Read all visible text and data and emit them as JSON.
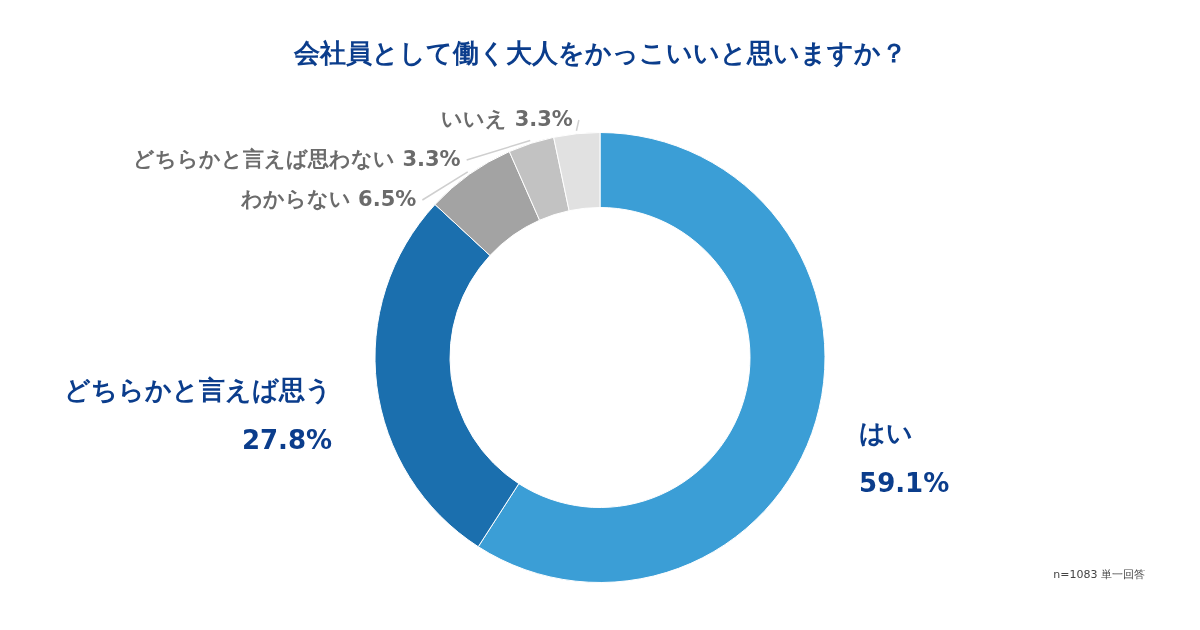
{
  "chart_data": {
    "type": "donut",
    "title": "会社員として働く大人をかっこいいと思いますか？",
    "categories": [
      "はい",
      "どちらかと言えば思う",
      "わからない",
      "どちらかと言えば思わない",
      "いいえ"
    ],
    "values": [
      59.1,
      27.8,
      6.5,
      3.3,
      3.3
    ],
    "value_labels": [
      "59.1%",
      "27.8%",
      "6.5%",
      "3.3%",
      "3.3%"
    ],
    "colors": [
      "#3b9ed6",
      "#1b6fae",
      "#a3a3a3",
      "#c2c2c2",
      "#e1e1e1"
    ],
    "annotations": [
      "n=1083 単一回答"
    ]
  }
}
